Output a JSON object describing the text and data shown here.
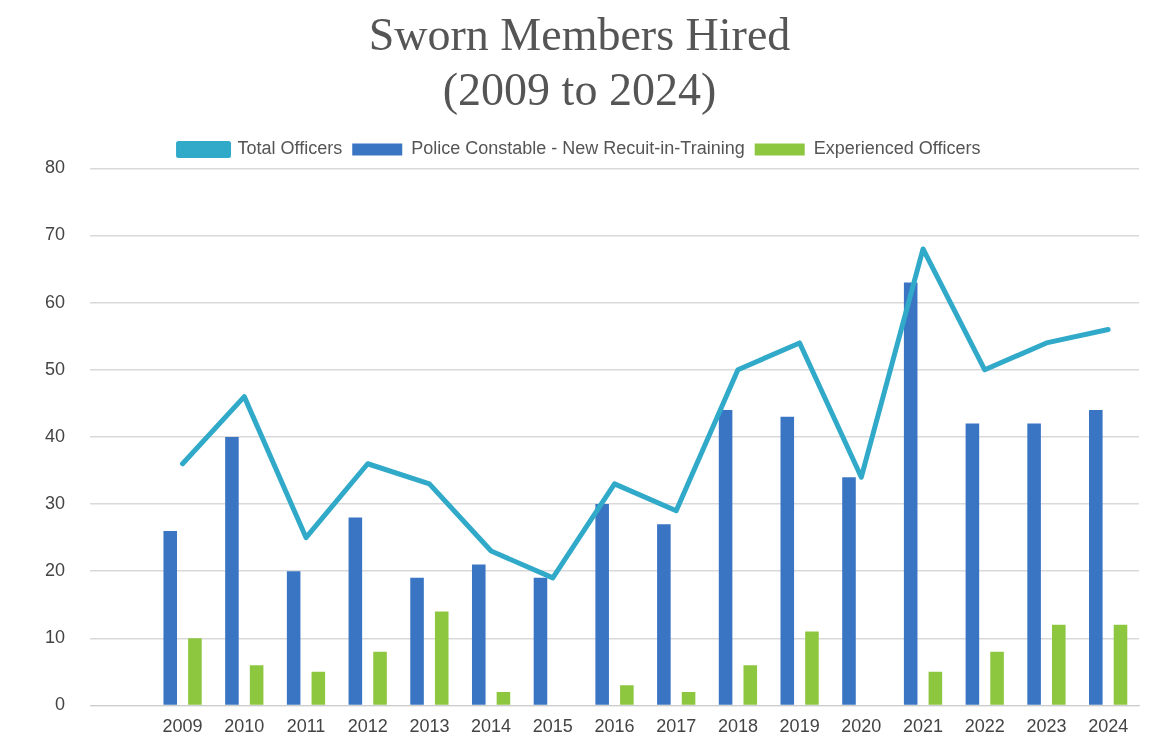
{
  "chart_data": {
    "type": "bar",
    "title": "Sworn Members Hired\n(2009 to 2024)",
    "categories": [
      null,
      "2009",
      "2010",
      "2011",
      "2012",
      "2013",
      "2014",
      "2015",
      "2016",
      "2017",
      "2018",
      "2019",
      "2020",
      "2021",
      "2022",
      "2023",
      "2024"
    ],
    "series": [
      {
        "name": "Police Constable - New Recuit-in-Training",
        "color": "#3a75c4",
        "values": [
          null,
          26,
          40,
          20,
          28,
          19,
          21,
          19,
          30,
          27,
          44,
          43,
          34,
          63,
          42,
          42,
          44
        ]
      },
      {
        "name": "Experienced Officers",
        "color": "#8dc63f",
        "values": [
          null,
          10,
          6,
          5,
          8,
          14,
          2,
          0,
          3,
          2,
          6,
          11,
          0,
          5,
          8,
          12,
          12
        ]
      },
      {
        "name": "Total Officers",
        "type": "line",
        "color": "#31a9c8",
        "values": [
          null,
          36,
          46,
          25,
          36,
          33,
          23,
          19,
          33,
          29,
          50,
          54,
          34,
          68,
          50,
          54,
          56
        ]
      }
    ],
    "ylim": [
      0,
      80
    ],
    "yticks": [
      0,
      10,
      20,
      30,
      40,
      50,
      60,
      70,
      80
    ],
    "grid": "y",
    "legend": "top",
    "marker": "none",
    "line_style": "solid"
  }
}
